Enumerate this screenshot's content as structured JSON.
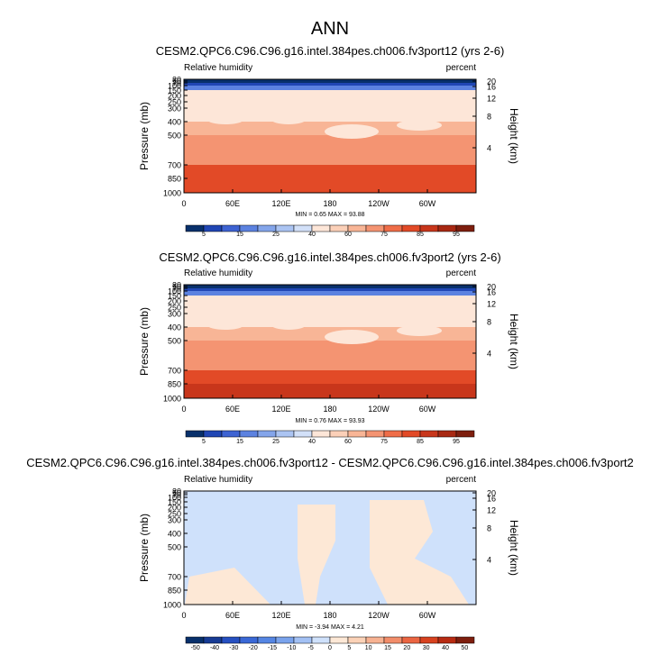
{
  "page": {
    "title": "ANN"
  },
  "chart_data": [
    {
      "type": "heatmap",
      "title": "CESM2.QPC6.C96.C96.g16.intel.384pes.ch006.fv3port12 (yrs 2-6)",
      "left_label": "Relative humidity",
      "right_label": "percent",
      "ylabel": "Pressure (mb)",
      "y2label": "Height (km)",
      "xticks": [
        "0",
        "60E",
        "120E",
        "180",
        "120W",
        "60W"
      ],
      "yticks": [
        "30",
        "50",
        "70",
        "100",
        "150",
        "200",
        "250",
        "300",
        "400",
        "500",
        "700",
        "850",
        "1000"
      ],
      "y2ticks": [
        "20",
        "16",
        "12",
        "8",
        "4"
      ],
      "stats": "MIN = 0.65 MAX = 93.88",
      "colorbar": {
        "labels": [
          "5",
          "15",
          "25",
          "40",
          "60",
          "75",
          "85",
          "95"
        ],
        "colors": [
          "#08306b",
          "#2046b4",
          "#3e63d2",
          "#5c82e0",
          "#84a5ea",
          "#abc4f2",
          "#d2e0f8",
          "#fde6d8",
          "#fbd0b8",
          "#f8b596",
          "#f49472",
          "#ef6d48",
          "#e24a27",
          "#c8361b",
          "#a82812",
          "#7e1e0e"
        ]
      },
      "profile": [
        {
          "p": 1000,
          "v": 84
        },
        {
          "p": 850,
          "v": 83
        },
        {
          "p": 700,
          "v": 71
        },
        {
          "p": 500,
          "v": 62
        },
        {
          "p": 400,
          "v": 47
        },
        {
          "p": 300,
          "v": 46
        },
        {
          "p": 250,
          "v": 47
        },
        {
          "p": 200,
          "v": 44
        },
        {
          "p": 150,
          "v": 18
        },
        {
          "p": 100,
          "v": 6
        },
        {
          "p": 70,
          "v": 3
        },
        {
          "p": 50,
          "v": 2
        },
        {
          "p": 30,
          "v": 1
        }
      ]
    },
    {
      "type": "heatmap",
      "title": "CESM2.QPC6.C96.C96.g16.intel.384pes.ch006.fv3port2 (yrs 2-6)",
      "left_label": "Relative humidity",
      "right_label": "percent",
      "ylabel": "Pressure (mb)",
      "y2label": "Height (km)",
      "xticks": [
        "0",
        "60E",
        "120E",
        "180",
        "120W",
        "60W"
      ],
      "yticks": [
        "30",
        "50",
        "70",
        "100",
        "150",
        "200",
        "250",
        "300",
        "400",
        "500",
        "700",
        "850",
        "1000"
      ],
      "y2ticks": [
        "20",
        "16",
        "12",
        "8",
        "4"
      ],
      "stats": "MIN = 0.76 MAX = 93.93",
      "colorbar": {
        "labels": [
          "5",
          "15",
          "25",
          "40",
          "60",
          "75",
          "85",
          "95"
        ],
        "colors": [
          "#08306b",
          "#2046b4",
          "#3e63d2",
          "#5c82e0",
          "#84a5ea",
          "#abc4f2",
          "#d2e0f8",
          "#fde6d8",
          "#fbd0b8",
          "#f8b596",
          "#f49472",
          "#ef6d48",
          "#e24a27",
          "#c8361b",
          "#a82812",
          "#7e1e0e"
        ]
      },
      "profile": [
        {
          "p": 1000,
          "v": 85
        },
        {
          "p": 850,
          "v": 83
        },
        {
          "p": 700,
          "v": 72
        },
        {
          "p": 500,
          "v": 62
        },
        {
          "p": 400,
          "v": 48
        },
        {
          "p": 300,
          "v": 46
        },
        {
          "p": 250,
          "v": 47
        },
        {
          "p": 200,
          "v": 45
        },
        {
          "p": 150,
          "v": 19
        },
        {
          "p": 100,
          "v": 6
        },
        {
          "p": 70,
          "v": 3
        },
        {
          "p": 50,
          "v": 2
        },
        {
          "p": 30,
          "v": 1
        }
      ]
    },
    {
      "type": "heatmap",
      "title": "CESM2.QPC6.C96.C96.g16.intel.384pes.ch006.fv3port12 - CESM2.QPC6.C96.C96.g16.intel.384pes.ch006.fv3port2",
      "left_label": "Relative humidity",
      "right_label": "percent",
      "ylabel": "Pressure (mb)",
      "y2label": "Height (km)",
      "xticks": [
        "0",
        "60E",
        "120E",
        "180",
        "120W",
        "60W"
      ],
      "yticks": [
        "30",
        "50",
        "70",
        "100",
        "150",
        "200",
        "250",
        "300",
        "400",
        "500",
        "700",
        "850",
        "1000"
      ],
      "y2ticks": [
        "20",
        "16",
        "12",
        "8",
        "4"
      ],
      "stats": "MIN = -3.94 MAX = 4.21",
      "colorbar": {
        "labels": [
          "-50",
          "-40",
          "-30",
          "-20",
          "-15",
          "-10",
          "-5",
          "0",
          "5",
          "10",
          "15",
          "20",
          "30",
          "40",
          "50"
        ],
        "colors": [
          "#08306b",
          "#173b94",
          "#2650c1",
          "#3a68d6",
          "#5586e3",
          "#7aa3ec",
          "#a3c1f4",
          "#cfe1fb",
          "#fde8d6",
          "#fbd2b7",
          "#f7b292",
          "#f28d6a",
          "#eb6542",
          "#d8421f",
          "#b82b12",
          "#7e1e0e"
        ]
      },
      "profile": [
        {
          "p": 1000,
          "v": -1
        },
        {
          "p": 30,
          "v": -1
        }
      ]
    }
  ]
}
